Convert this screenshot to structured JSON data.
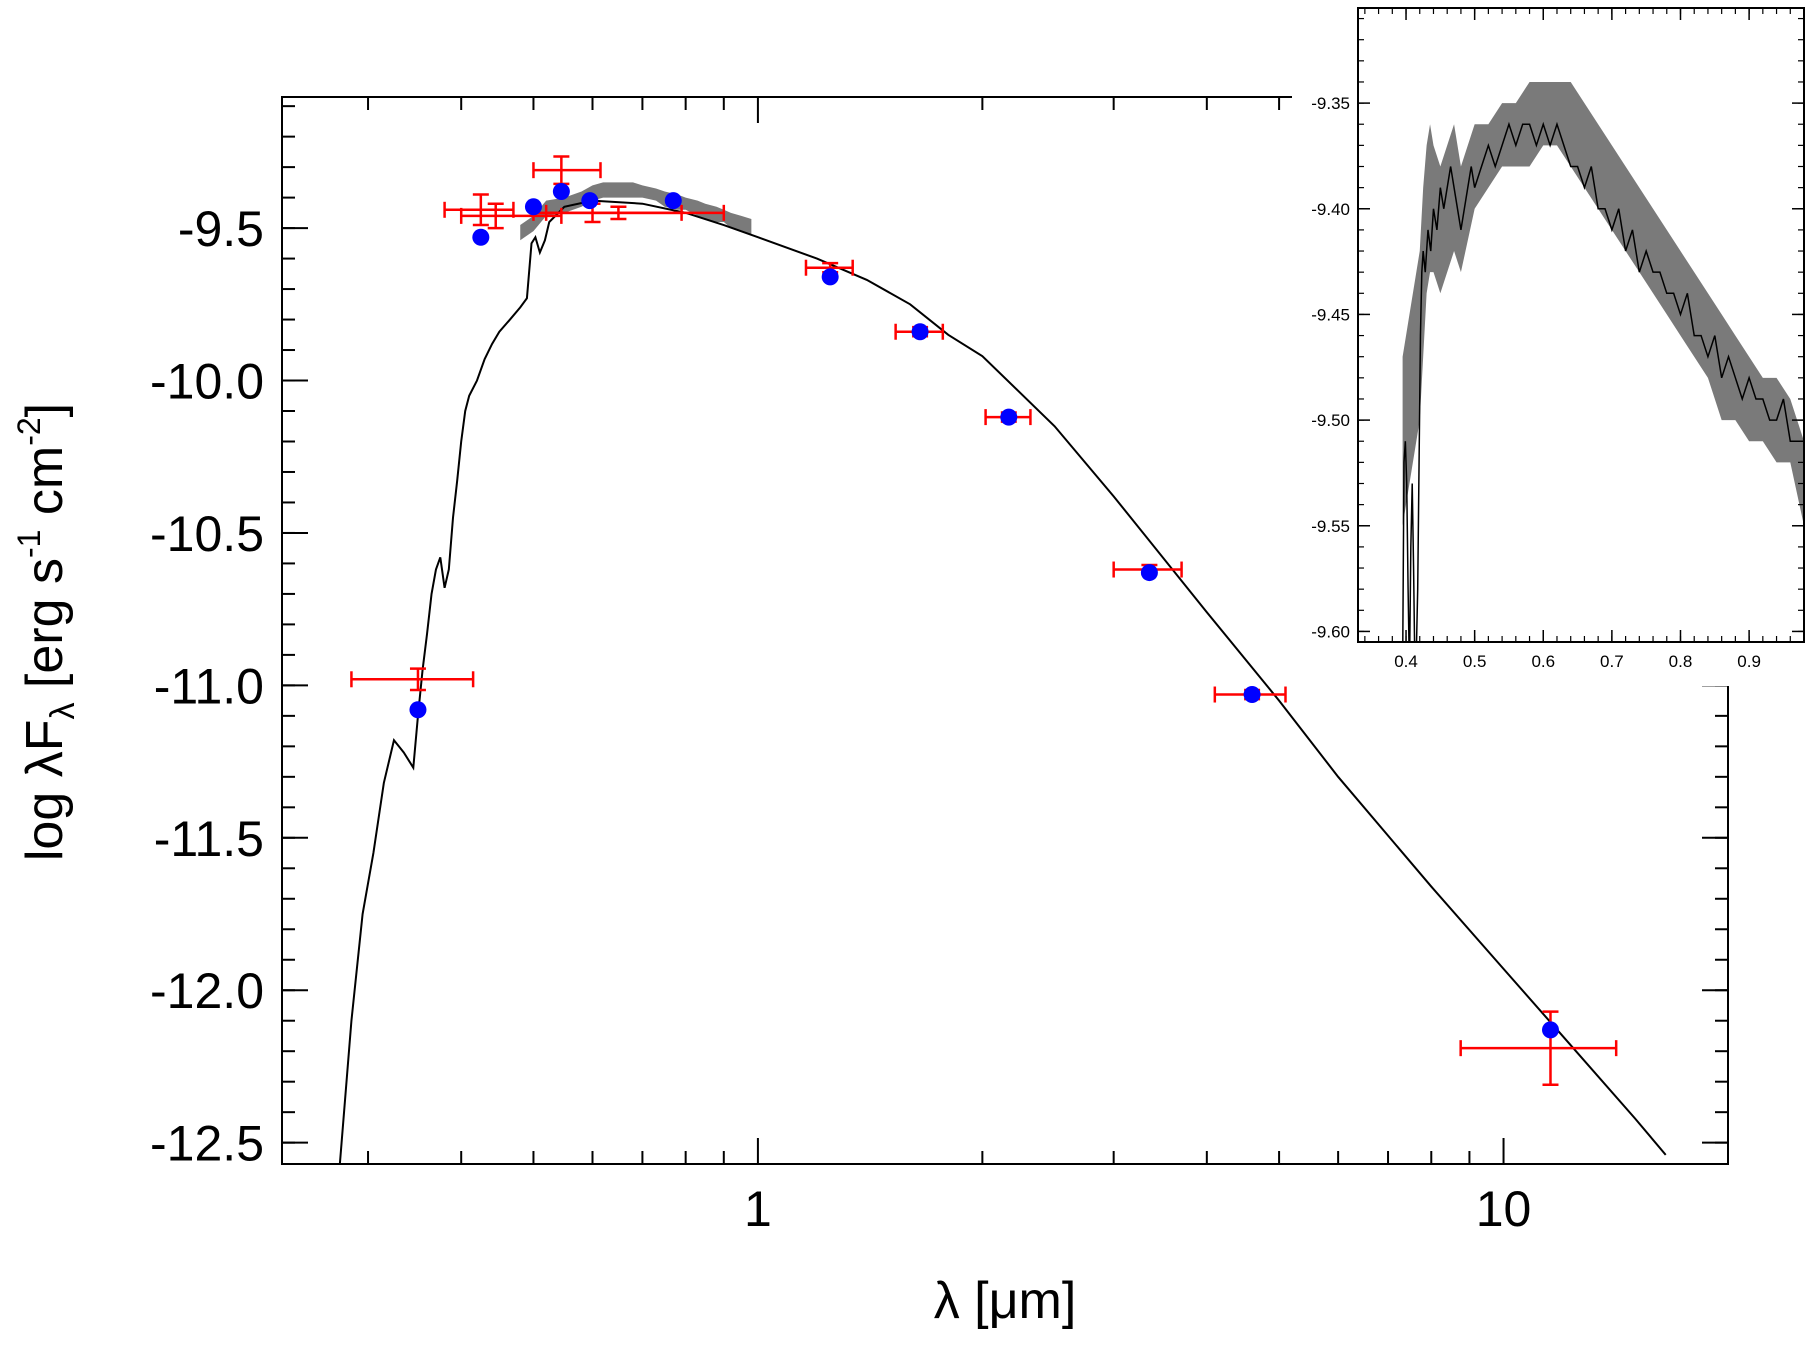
{
  "chart_data": [
    {
      "id": "main",
      "type": "scatter",
      "title": "",
      "xlabel": "λ [μm]",
      "ylabel_parts": {
        "log": "log λF",
        "sub": "λ",
        "bracket": "[erg s",
        "exp1": "-1",
        "cm": " cm",
        "exp2": "-2",
        "close": "]"
      },
      "xscale": "log",
      "xlim": [
        0.23,
        20.0
      ],
      "ylim": [
        -12.57,
        -9.07
      ],
      "x_major_ticks": [
        {
          "value": 1,
          "label": "1"
        },
        {
          "value": 10,
          "label": "10"
        }
      ],
      "x_minor_ticks": [
        0.3,
        0.4,
        0.5,
        0.6,
        0.7,
        0.8,
        0.9,
        2,
        3,
        4,
        5,
        6,
        7,
        8,
        9,
        20
      ],
      "y_major_ticks": [
        {
          "value": -9.5,
          "label": "-9.5"
        },
        {
          "value": -10.0,
          "label": "-10.0"
        },
        {
          "value": -10.5,
          "label": "-10.5"
        },
        {
          "value": -11.0,
          "label": "-11.0"
        },
        {
          "value": -11.5,
          "label": "-11.5"
        },
        {
          "value": -12.0,
          "label": "-12.0"
        },
        {
          "value": -12.5,
          "label": "-12.5"
        }
      ],
      "y_minor_step": 0.1,
      "model_curve": {
        "name": "model SED",
        "color": "#000000",
        "x": [
          0.275,
          0.285,
          0.295,
          0.305,
          0.315,
          0.325,
          0.33,
          0.335,
          0.345,
          0.35,
          0.355,
          0.36,
          0.365,
          0.37,
          0.375,
          0.38,
          0.385,
          0.39,
          0.395,
          0.4,
          0.405,
          0.41,
          0.42,
          0.43,
          0.44,
          0.45,
          0.465,
          0.48,
          0.49,
          0.497,
          0.503,
          0.51,
          0.518,
          0.525,
          0.535,
          0.55,
          0.6,
          0.7,
          0.8,
          0.9,
          1.0,
          1.2,
          1.4,
          1.6,
          1.8,
          2.0,
          2.5,
          3.0,
          4.0,
          5.0,
          6.0,
          8.0,
          10.0,
          12.0,
          15.0,
          16.5
        ],
        "y": [
          -12.57,
          -12.1,
          -11.75,
          -11.55,
          -11.32,
          -11.18,
          -11.2,
          -11.22,
          -11.27,
          -11.1,
          -10.95,
          -10.83,
          -10.7,
          -10.62,
          -10.58,
          -10.68,
          -10.62,
          -10.45,
          -10.33,
          -10.2,
          -10.1,
          -10.05,
          -10.0,
          -9.93,
          -9.88,
          -9.84,
          -9.8,
          -9.76,
          -9.73,
          -9.55,
          -9.53,
          -9.58,
          -9.54,
          -9.48,
          -9.46,
          -9.43,
          -9.41,
          -9.42,
          -9.45,
          -9.49,
          -9.53,
          -9.6,
          -9.67,
          -9.75,
          -9.85,
          -9.92,
          -10.15,
          -10.38,
          -10.76,
          -11.05,
          -11.3,
          -11.66,
          -11.93,
          -12.15,
          -12.42,
          -12.54
        ]
      },
      "model_band": {
        "name": "spectrum uncertainty band",
        "color": "#7a7a7a",
        "x": [
          0.48,
          0.5,
          0.52,
          0.55,
          0.58,
          0.6,
          0.62,
          0.65,
          0.68,
          0.7,
          0.73,
          0.75,
          0.78,
          0.8,
          0.83,
          0.85,
          0.88,
          0.9,
          0.92,
          0.95,
          0.98
        ],
        "y_low": [
          -9.54,
          -9.51,
          -9.46,
          -9.45,
          -9.43,
          -9.41,
          -9.4,
          -9.4,
          -9.4,
          -9.4,
          -9.41,
          -9.43,
          -9.44,
          -9.44,
          -9.46,
          -9.47,
          -9.48,
          -9.48,
          -9.5,
          -9.51,
          -9.52
        ],
        "y_high": [
          -9.49,
          -9.46,
          -9.41,
          -9.4,
          -9.38,
          -9.36,
          -9.35,
          -9.35,
          -9.35,
          -9.36,
          -9.37,
          -9.38,
          -9.39,
          -9.4,
          -9.41,
          -9.42,
          -9.43,
          -9.44,
          -9.45,
          -9.46,
          -9.47
        ]
      },
      "photometry": {
        "name": "observed photometry",
        "color": "#ff0000",
        "points": [
          {
            "x": 0.35,
            "y": -10.98,
            "xerr_low": 0.065,
            "xerr_high": 0.065,
            "yerr": 0.035
          },
          {
            "x": 0.425,
            "y": -9.44,
            "xerr_low": 0.045,
            "xerr_high": 0.045,
            "yerr": 0.05
          },
          {
            "x": 0.445,
            "y": -9.46,
            "xerr_low": 0.045,
            "xerr_high": 0.1,
            "yerr": 0.04
          },
          {
            "x": 0.545,
            "y": -9.31,
            "xerr_low": 0.045,
            "xerr_high": 0.07,
            "yerr": 0.045
          },
          {
            "x": 0.6,
            "y": -9.45,
            "xerr_low": 0.08,
            "xerr_high": 0.19,
            "yerr": 0.03
          },
          {
            "x": 0.65,
            "y": -9.45,
            "xerr_low": 0.15,
            "xerr_high": 0.25,
            "yerr": 0.02
          },
          {
            "x": 1.25,
            "y": -9.63,
            "xerr_low": 0.09,
            "xerr_high": 0.09,
            "yerr": 0.015
          },
          {
            "x": 1.65,
            "y": -9.84,
            "xerr_low": 0.12,
            "xerr_high": 0.12,
            "yerr": 0.015
          },
          {
            "x": 2.17,
            "y": -10.12,
            "xerr_low": 0.15,
            "xerr_high": 0.15,
            "yerr": 0.015
          },
          {
            "x": 3.35,
            "y": -10.62,
            "xerr_low": 0.35,
            "xerr_high": 0.35,
            "yerr": 0.015
          },
          {
            "x": 4.6,
            "y": -11.03,
            "xerr_low": 0.5,
            "xerr_high": 0.5,
            "yerr": 0.015
          },
          {
            "x": 11.56,
            "y": -12.19,
            "xerr_low": 2.8,
            "xerr_high": 2.6,
            "yerr": 0.12
          }
        ]
      },
      "synthetic": {
        "name": "model synthetic photometry",
        "color": "#0000ff",
        "points": [
          {
            "x": 0.35,
            "y": -11.08
          },
          {
            "x": 0.425,
            "y": -9.53
          },
          {
            "x": 0.5,
            "y": -9.43
          },
          {
            "x": 0.545,
            "y": -9.38
          },
          {
            "x": 0.595,
            "y": -9.41
          },
          {
            "x": 0.77,
            "y": -9.41
          },
          {
            "x": 1.25,
            "y": -9.66
          },
          {
            "x": 1.65,
            "y": -9.84
          },
          {
            "x": 2.17,
            "y": -10.12
          },
          {
            "x": 3.35,
            "y": -10.63
          },
          {
            "x": 4.6,
            "y": -11.03
          },
          {
            "x": 11.56,
            "y": -12.13
          }
        ]
      }
    },
    {
      "id": "inset",
      "type": "line",
      "title": "",
      "xlabel": "",
      "ylabel": "",
      "xscale": "linear",
      "xlim": [
        0.33,
        0.98
      ],
      "ylim": [
        -9.605,
        -9.305
      ],
      "x_major_ticks": [
        {
          "value": 0.4,
          "label": "0.4"
        },
        {
          "value": 0.5,
          "label": "0.5"
        },
        {
          "value": 0.6,
          "label": "0.6"
        },
        {
          "value": 0.7,
          "label": "0.7"
        },
        {
          "value": 0.8,
          "label": "0.8"
        },
        {
          "value": 0.9,
          "label": "0.9"
        }
      ],
      "x_minor_step": 0.02,
      "y_major_ticks": [
        {
          "value": -9.35,
          "label": "-9.35"
        },
        {
          "value": -9.4,
          "label": "-9.40"
        },
        {
          "value": -9.45,
          "label": "-9.45"
        },
        {
          "value": -9.5,
          "label": "-9.50"
        },
        {
          "value": -9.55,
          "label": "-9.55"
        },
        {
          "value": -9.6,
          "label": "-9.60"
        }
      ],
      "y_minor_step": 0.01,
      "band": {
        "name": "spectrum uncertainty band",
        "color": "#7a7a7a",
        "x": [
          0.395,
          0.4,
          0.405,
          0.41,
          0.415,
          0.42,
          0.425,
          0.43,
          0.435,
          0.44,
          0.45,
          0.46,
          0.47,
          0.48,
          0.5,
          0.52,
          0.54,
          0.56,
          0.58,
          0.6,
          0.62,
          0.64,
          0.66,
          0.68,
          0.7,
          0.72,
          0.74,
          0.76,
          0.78,
          0.8,
          0.82,
          0.84,
          0.86,
          0.88,
          0.9,
          0.92,
          0.94,
          0.96,
          0.98
        ],
        "y_low": [
          -9.55,
          -9.54,
          -9.53,
          -9.52,
          -9.51,
          -9.5,
          -9.47,
          -9.44,
          -9.43,
          -9.43,
          -9.44,
          -9.43,
          -9.42,
          -9.43,
          -9.4,
          -9.39,
          -9.38,
          -9.38,
          -9.38,
          -9.37,
          -9.37,
          -9.38,
          -9.39,
          -9.4,
          -9.41,
          -9.42,
          -9.43,
          -9.44,
          -9.45,
          -9.46,
          -9.47,
          -9.48,
          -9.5,
          -9.5,
          -9.51,
          -9.51,
          -9.52,
          -9.52,
          -9.55
        ],
        "y_high": [
          -9.47,
          -9.46,
          -9.45,
          -9.44,
          -9.43,
          -9.42,
          -9.39,
          -9.37,
          -9.36,
          -9.37,
          -9.38,
          -9.37,
          -9.36,
          -9.38,
          -9.36,
          -9.36,
          -9.35,
          -9.35,
          -9.34,
          -9.34,
          -9.34,
          -9.34,
          -9.35,
          -9.36,
          -9.37,
          -9.38,
          -9.39,
          -9.4,
          -9.41,
          -9.42,
          -9.43,
          -9.44,
          -9.45,
          -9.46,
          -9.47,
          -9.48,
          -9.48,
          -9.49,
          -9.51
        ]
      },
      "line": {
        "name": "model spectrum",
        "color": "#000000",
        "x": [
          0.395,
          0.397,
          0.399,
          0.401,
          0.403,
          0.405,
          0.407,
          0.409,
          0.411,
          0.413,
          0.415,
          0.417,
          0.419,
          0.421,
          0.423,
          0.425,
          0.428,
          0.432,
          0.436,
          0.44,
          0.445,
          0.45,
          0.455,
          0.46,
          0.465,
          0.47,
          0.475,
          0.48,
          0.485,
          0.49,
          0.495,
          0.5,
          0.51,
          0.52,
          0.53,
          0.54,
          0.55,
          0.56,
          0.57,
          0.58,
          0.59,
          0.6,
          0.61,
          0.62,
          0.63,
          0.64,
          0.65,
          0.66,
          0.67,
          0.68,
          0.69,
          0.7,
          0.71,
          0.72,
          0.73,
          0.74,
          0.75,
          0.76,
          0.77,
          0.78,
          0.79,
          0.8,
          0.81,
          0.82,
          0.83,
          0.84,
          0.85,
          0.86,
          0.87,
          0.88,
          0.89,
          0.9,
          0.91,
          0.92,
          0.93,
          0.94,
          0.95,
          0.96,
          0.97,
          0.98
        ],
        "y": [
          -9.62,
          -9.52,
          -9.51,
          -9.53,
          -9.58,
          -9.62,
          -9.56,
          -9.53,
          -9.57,
          -9.62,
          -9.61,
          -9.58,
          -9.52,
          -9.46,
          -9.43,
          -9.42,
          -9.43,
          -9.41,
          -9.42,
          -9.4,
          -9.41,
          -9.39,
          -9.4,
          -9.39,
          -9.38,
          -9.39,
          -9.4,
          -9.41,
          -9.4,
          -9.39,
          -9.38,
          -9.39,
          -9.38,
          -9.37,
          -9.38,
          -9.37,
          -9.36,
          -9.37,
          -9.36,
          -9.36,
          -9.37,
          -9.36,
          -9.37,
          -9.36,
          -9.37,
          -9.38,
          -9.38,
          -9.39,
          -9.38,
          -9.4,
          -9.4,
          -9.41,
          -9.4,
          -9.42,
          -9.41,
          -9.43,
          -9.42,
          -9.43,
          -9.43,
          -9.44,
          -9.44,
          -9.45,
          -9.44,
          -9.46,
          -9.46,
          -9.47,
          -9.46,
          -9.48,
          -9.47,
          -9.48,
          -9.49,
          -9.48,
          -9.49,
          -9.49,
          -9.5,
          -9.5,
          -9.49,
          -9.51,
          -9.51,
          -9.51
        ]
      }
    }
  ]
}
